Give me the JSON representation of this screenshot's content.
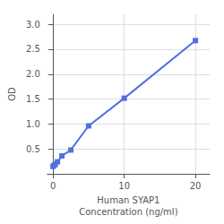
{
  "chart_data": {
    "type": "line",
    "xlabel": "Human SYAP1\nConcentration (ng/ml)",
    "ylabel": "OD",
    "x": [
      0,
      0.156,
      0.313,
      0.625,
      1.25,
      2.5,
      5,
      10,
      20
    ],
    "values": [
      0.148,
      0.172,
      0.191,
      0.241,
      0.359,
      0.478,
      0.962,
      1.517,
      2.673
    ],
    "marker": "square",
    "xlim": [
      -0.8,
      22
    ],
    "ylim": [
      0.0,
      3.2
    ],
    "xticks": [
      0,
      10,
      20
    ],
    "yticks": [
      0.5,
      {
        "value": 1.0,
        "label": "1.0"
      },
      1.5,
      {
        "value": 2.0,
        "label": "2.0"
      },
      2.5,
      {
        "value": 3.0,
        "label": "3.0"
      }
    ],
    "grid": true
  }
}
